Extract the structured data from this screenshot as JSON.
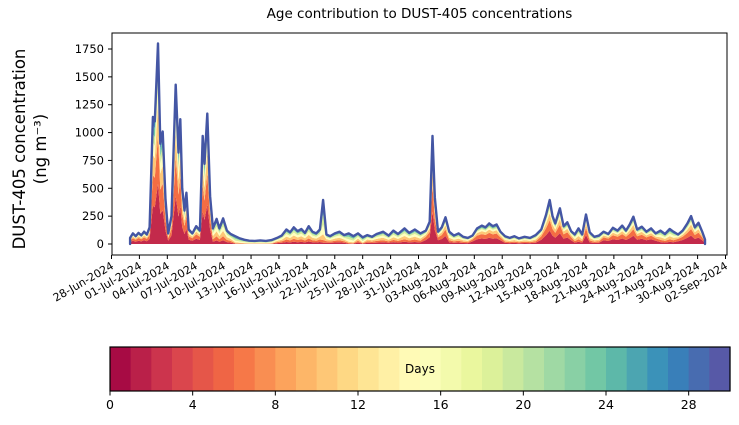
{
  "chart_data": {
    "type": "area",
    "subtype": "stacked-age-contribution",
    "title": "Age contribution to DUST-405 concentrations",
    "ylabel_line1": "DUST-405 concentration",
    "ylabel_line2": "(ng m⁻³)",
    "grid": false,
    "legend": "colorbar-bottom",
    "ylim": [
      0,
      1890
    ],
    "y_ticks": [
      0,
      250,
      500,
      750,
      1000,
      1250,
      1500,
      1750
    ],
    "x_axis_unit": "days since 28-Jun-2024",
    "xlim_days": [
      0,
      66.2
    ],
    "x_tick_days": [
      0,
      3,
      6,
      9,
      12,
      15,
      18,
      21,
      24,
      27,
      30,
      33,
      36,
      39,
      42,
      45,
      48,
      51,
      54,
      57,
      60,
      63,
      66
    ],
    "x_tick_labels": [
      "28-Jun-2024",
      "01-Jul-2024",
      "04-Jul-2024",
      "07-Jul-2024",
      "10-Jul-2024",
      "13-Jul-2024",
      "16-Jul-2024",
      "19-Jul-2024",
      "22-Jul-2024",
      "25-Jul-2024",
      "28-Jul-2024",
      "31-Jul-2024",
      "03-Aug-2024",
      "06-Aug-2024",
      "09-Aug-2024",
      "12-Aug-2024",
      "15-Aug-2024",
      "18-Aug-2024",
      "21-Aug-2024",
      "24-Aug-2024",
      "27-Aug-2024",
      "30-Aug-2024",
      "02-Sep-2024"
    ],
    "series_bands": [
      {
        "name": "0-4 days",
        "t": 0.067
      },
      {
        "name": "4-8 days",
        "t": 0.2
      },
      {
        "name": "8-13 days",
        "t": 0.35
      },
      {
        "name": "13-17 days",
        "t": 0.5
      },
      {
        "name": "17-21 days",
        "t": 0.633
      },
      {
        "name": "21-26 days",
        "t": 0.783
      },
      {
        "name": "26-30 days",
        "t": 0.92
      }
    ],
    "age_profiles": {
      "F": [
        0.3,
        0.24,
        0.16,
        0.1,
        0.07,
        0.07,
        0.06
      ],
      "M": [
        0.14,
        0.17,
        0.2,
        0.18,
        0.13,
        0.1,
        0.08
      ],
      "A": [
        0.03,
        0.06,
        0.13,
        0.22,
        0.24,
        0.18,
        0.14
      ]
    },
    "samples": {
      "x_days": [
        2.0,
        2.3,
        2.6,
        2.9,
        3.2,
        3.5,
        3.8,
        4.1,
        4.45,
        4.65,
        5.0,
        5.25,
        5.5,
        5.8,
        6.1,
        6.45,
        6.9,
        7.2,
        7.4,
        7.6,
        7.85,
        8.05,
        8.3,
        8.7,
        9.1,
        9.5,
        9.8,
        10.0,
        10.3,
        10.6,
        10.9,
        11.3,
        11.6,
        12.0,
        12.4,
        12.8,
        13.3,
        13.8,
        14.3,
        14.8,
        15.4,
        16.0,
        16.6,
        17.2,
        17.8,
        18.3,
        18.8,
        19.2,
        19.6,
        20.0,
        20.4,
        20.8,
        21.2,
        21.6,
        22.0,
        22.4,
        22.75,
        23.1,
        23.5,
        24.0,
        24.5,
        25.0,
        25.5,
        26.0,
        26.5,
        27.0,
        27.5,
        28.0,
        28.5,
        29.2,
        29.8,
        30.3,
        30.8,
        31.5,
        32.0,
        32.6,
        33.2,
        33.8,
        34.2,
        34.5,
        34.75,
        35.1,
        35.5,
        35.9,
        36.3,
        36.8,
        37.3,
        37.8,
        38.3,
        38.8,
        39.3,
        39.8,
        40.2,
        40.6,
        41.0,
        41.4,
        41.8,
        42.3,
        42.8,
        43.3,
        43.8,
        44.4,
        45.0,
        45.6,
        46.2,
        46.7,
        47.1,
        47.4,
        47.7,
        48.2,
        48.6,
        49.0,
        49.4,
        49.8,
        50.2,
        50.6,
        51.0,
        51.4,
        51.9,
        52.4,
        52.9,
        53.4,
        53.9,
        54.4,
        54.9,
        55.3,
        55.7,
        56.1,
        56.5,
        57.0,
        57.5,
        58.0,
        58.5,
        59.0,
        59.5,
        60.0,
        60.4,
        60.9,
        61.4,
        61.9,
        62.3,
        62.7,
        63.1,
        63.5,
        63.8
      ],
      "total": [
        55,
        95,
        70,
        100,
        78,
        110,
        85,
        150,
        1140,
        1100,
        1800,
        900,
        1010,
        400,
        95,
        250,
        1430,
        820,
        1120,
        500,
        300,
        460,
        130,
        95,
        160,
        120,
        970,
        720,
        1170,
        430,
        140,
        225,
        140,
        230,
        120,
        90,
        70,
        50,
        38,
        30,
        28,
        32,
        28,
        35,
        55,
        75,
        130,
        105,
        150,
        115,
        135,
        100,
        160,
        110,
        95,
        130,
        395,
        85,
        70,
        95,
        110,
        80,
        95,
        70,
        95,
        60,
        80,
        65,
        90,
        110,
        75,
        120,
        90,
        140,
        100,
        130,
        95,
        120,
        200,
        970,
        420,
        110,
        150,
        240,
        110,
        75,
        95,
        65,
        55,
        75,
        140,
        165,
        150,
        185,
        160,
        175,
        110,
        70,
        55,
        70,
        50,
        65,
        55,
        80,
        130,
        260,
        395,
        250,
        185,
        320,
        160,
        195,
        115,
        85,
        140,
        85,
        265,
        105,
        65,
        75,
        110,
        90,
        145,
        120,
        165,
        120,
        175,
        245,
        130,
        155,
        110,
        140,
        95,
        120,
        90,
        135,
        110,
        85,
        120,
        185,
        250,
        150,
        190,
        110,
        40
      ],
      "profile": "FFFFFFFFFFFFFFFFFFFFFFFFFFFFFFMMMMMMAAAAAAAAMMMMMMMMMMMMAMMMMMAAMAMMMMMMMMMMMFFFFFFFMMMMMFFFFFFFFMMMMMMMFFFFFFFFFMMMFMMMFFFFFFFFFFFFFMMMMFFFFFFFF"
    },
    "colorbar": {
      "label": "Days",
      "ticks": [
        0,
        4,
        8,
        12,
        16,
        20,
        24,
        28
      ],
      "range": [
        0,
        30
      ],
      "n_segments": 30,
      "spectral_anchors": [
        "#9e0142",
        "#d53e4f",
        "#f46d43",
        "#fdae61",
        "#fee08b",
        "#ffffbf",
        "#e6f598",
        "#abdda4",
        "#66c2a5",
        "#3288bd",
        "#5e4fa2"
      ]
    },
    "colors": {
      "envelope_line": "#4456a4",
      "spine": "#000000",
      "background": "#ffffff",
      "text": "#000000"
    }
  }
}
